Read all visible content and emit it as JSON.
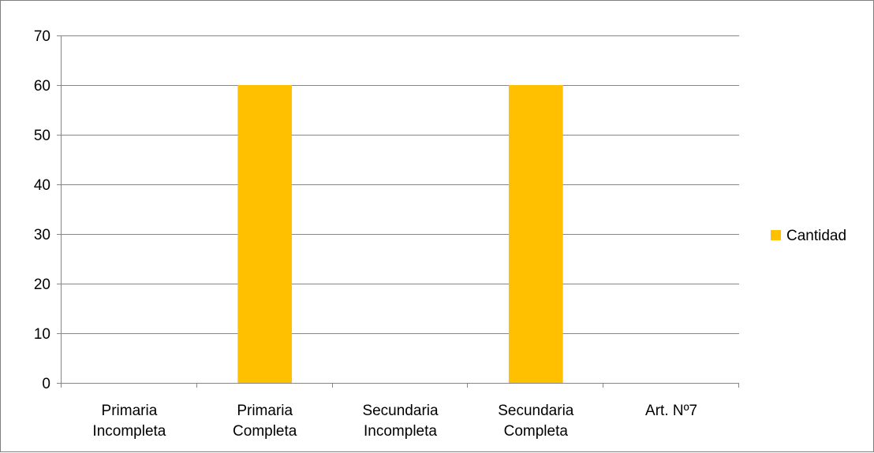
{
  "chart_data": {
    "type": "bar",
    "title": "",
    "xlabel": "",
    "ylabel": "",
    "categories": [
      [
        "Primaria",
        "Incompleta"
      ],
      [
        "Primaria",
        "Completa"
      ],
      [
        "Secundaria",
        "Incompleta"
      ],
      [
        "Secundaria",
        "Completa"
      ],
      [
        "Art. Nº7"
      ]
    ],
    "series": [
      {
        "name": "Cantidad",
        "values": [
          0,
          60,
          0,
          60,
          0
        ],
        "color": "#FFC000"
      }
    ],
    "ylim": [
      0,
      70
    ],
    "yticks": [
      0,
      10,
      20,
      30,
      40,
      50,
      60,
      70
    ],
    "grid": true,
    "legend": {
      "position": "right"
    }
  }
}
